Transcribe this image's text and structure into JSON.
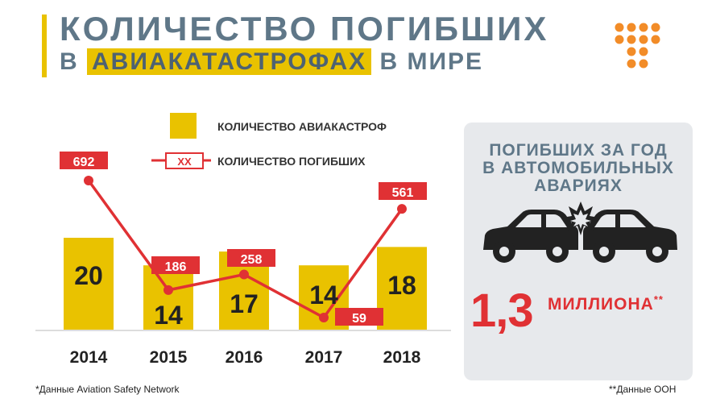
{
  "header": {
    "title_line1": "КОЛИЧЕСТВО ПОГИБШИХ",
    "title_line2_pre": "В",
    "title_line2_highlight": "АВИАКАТАСТРОФАХ",
    "title_line2_post": "В МИРЕ"
  },
  "colors": {
    "bar": "#e9c200",
    "line": "#e03134",
    "text_slate": "#5f7788",
    "logo": "#f28c28"
  },
  "chart_data": {
    "type": "bar",
    "categories": [
      "2014",
      "2015",
      "2016",
      "2017",
      "2018"
    ],
    "series": [
      {
        "name": "КОЛИЧЕСТВО АВИАКАСТРОФ",
        "kind": "bar",
        "values": [
          20,
          14,
          17,
          14,
          18
        ]
      },
      {
        "name": "КОЛИЧЕСТВО ПОГИБШИХ",
        "kind": "line",
        "values": [
          692,
          186,
          258,
          59,
          561
        ]
      }
    ],
    "legend": {
      "placement": "top",
      "bar_label": "КОЛИЧЕСТВО АВИАКАСТРОФ",
      "line_label": "КОЛИЧЕСТВО ПОГИБШИХ",
      "line_sample_text": "XX"
    },
    "title": "",
    "xlabel": "",
    "ylabel": "",
    "grid": false
  },
  "side_card": {
    "title_lines": [
      "ПОГИБШИХ ЗА ГОД",
      "В АВТОМОБИЛЬНЫХ",
      "АВАРИЯХ"
    ],
    "value": "1,3",
    "unit": "МИЛЛИОНА",
    "unit_mark": "**",
    "icon": "car-crash-icon"
  },
  "footnotes": {
    "left": "*Данные Aviation Safety Network",
    "right": "**Данные ООН"
  }
}
